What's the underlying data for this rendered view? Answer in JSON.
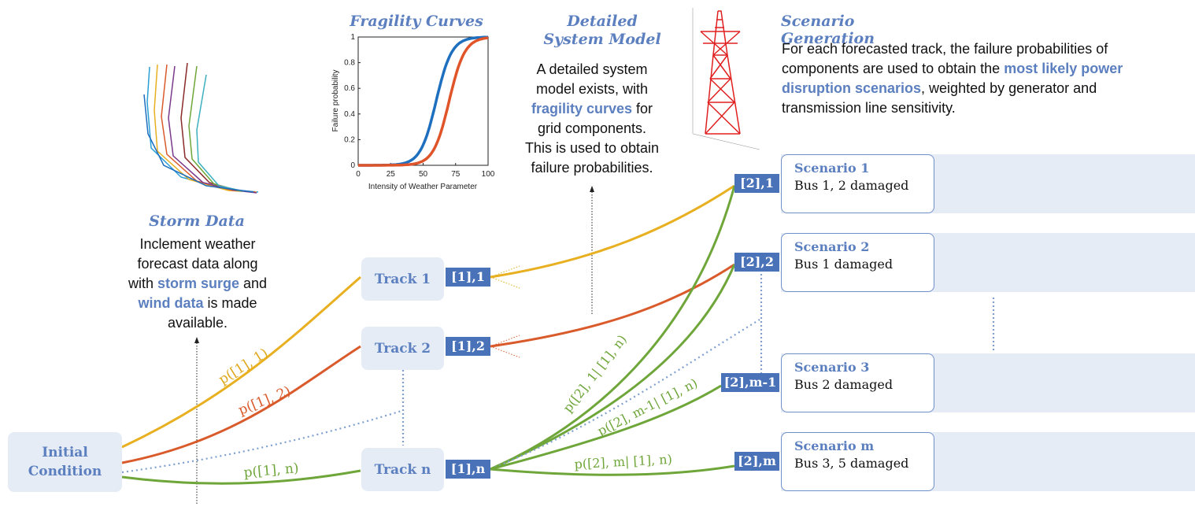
{
  "storm": {
    "heading": "Storm Data",
    "lines": [
      [
        {
          "t": "Inclement weather"
        }
      ],
      [
        {
          "t": "forecast data along"
        }
      ],
      [
        {
          "t": "with "
        },
        {
          "t": "storm surge",
          "hl": true
        },
        {
          "t": " and"
        }
      ],
      [
        {
          "t": "wind data",
          "hl": true
        },
        {
          "t": " is made"
        }
      ],
      [
        {
          "t": "available."
        }
      ]
    ]
  },
  "fragility": {
    "heading": "Fragility Curves",
    "xlabel": "Intensity of Weather Parameter",
    "ylabel": "Failure probability",
    "xticks": [
      "0",
      "25",
      "50",
      "75",
      "100"
    ],
    "yticks": [
      "0",
      "0.2",
      "0.4",
      "0.6",
      "0.8",
      "1"
    ],
    "series_colors": [
      "#1f6fbf",
      "#e0542a"
    ]
  },
  "model": {
    "heading": [
      "Detailed",
      "System Model"
    ],
    "lines": [
      [
        {
          "t": "A detailed system"
        }
      ],
      [
        {
          "t": "model exists, with"
        }
      ],
      [
        {
          "t": "fragility curves",
          "hl": true
        },
        {
          "t": " for"
        }
      ],
      [
        {
          "t": "grid components."
        }
      ],
      [
        {
          "t": "This is used to obtain"
        }
      ],
      [
        {
          "t": "failure probabilities."
        }
      ]
    ]
  },
  "scenario_gen": {
    "heading": "Scenario Generation",
    "lines": [
      [
        {
          "t": "For each forecasted track, the failure probabilities of"
        }
      ],
      [
        {
          "t": "components are used to obtain the "
        },
        {
          "t": "most likely power",
          "hl": true
        }
      ],
      [
        {
          "t": "disruption scenarios",
          "hl": true
        },
        {
          "t": ", weighted by generator and"
        }
      ],
      [
        {
          "t": "transmission line sensitivity."
        }
      ]
    ]
  },
  "initial": {
    "label": [
      "Initial",
      "Condition"
    ]
  },
  "tracks": [
    {
      "label": "Track 1",
      "tag": "[1],1"
    },
    {
      "label": "Track 2",
      "tag": "[1],2"
    },
    {
      "label": "Track n",
      "tag": "[1],n"
    }
  ],
  "scenario_tags": [
    "[2],1",
    "[2],2",
    "[2],m-1",
    "[2],m"
  ],
  "scenarios": [
    {
      "title": "Scenario 1",
      "desc": "Bus 1, 2 damaged"
    },
    {
      "title": "Scenario 2",
      "desc": "Bus 1 damaged"
    },
    {
      "title": "Scenario 3",
      "desc": "Bus 2 damaged"
    },
    {
      "title": "Scenario m",
      "desc": "Bus 3, 5 damaged"
    }
  ],
  "edge_labels": {
    "p11": "p([1], 1)",
    "p12": "p([1], 2)",
    "p1n": "p([1], n)",
    "p21": "p([2], 1| [1], n)",
    "p2m1": "p([2], m-1| [1], n)",
    "p2m": "p([2], m| [1], n)"
  },
  "colors": {
    "accent": "#5b7fbf",
    "tag": "#4a72b8",
    "yellow": "#e8b020",
    "orange": "#d95a2b",
    "green": "#6fa63a",
    "node": "#5b86d0",
    "damaged": "#d96b5e"
  }
}
